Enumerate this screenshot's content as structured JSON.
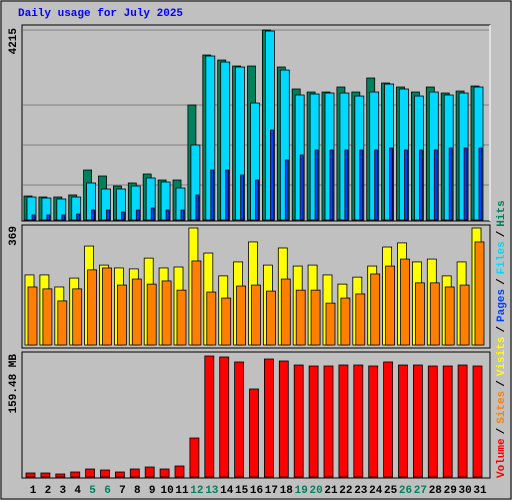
{
  "legend": {
    "separator": "/"
  },
  "chart_data": [
    {
      "type": "bar",
      "title": "Daily usage for July 2025",
      "title_color": "#0000ff",
      "ylim": [
        0,
        4215
      ],
      "yticks": [
        4215
      ],
      "grid": true,
      "series": [
        {
          "name": "Hits",
          "color": "#00805c",
          "values": [
            532,
            510,
            510,
            555,
            1109,
            976,
            754,
            821,
            1020,
            887,
            887,
            2551,
            3660,
            3549,
            3416,
            3416,
            4215,
            3394,
            2906,
            2839,
            2839,
            2950,
            2839,
            3150,
            3039,
            2950,
            2839,
            2950,
            2817,
            2861,
            2972
          ]
        },
        {
          "name": "Files",
          "color": "#00d8ff",
          "values": [
            510,
            488,
            466,
            510,
            821,
            688,
            688,
            754,
            932,
            843,
            710,
            1664,
            3638,
            3504,
            3394,
            2595,
            4192,
            3327,
            2773,
            2795,
            2817,
            2817,
            2750,
            2839,
            3016,
            2906,
            2750,
            2839,
            2773,
            2817,
            2950
          ]
        },
        {
          "name": "Pages",
          "color": "#0040ff",
          "values": [
            111,
            111,
            111,
            133,
            222,
            222,
            177,
            222,
            266,
            222,
            222,
            555,
            1109,
            1109,
            998,
            887,
            1996,
            1331,
            1442,
            1553,
            1553,
            1553,
            1553,
            1553,
            1597,
            1553,
            1553,
            1553,
            1597,
            1597,
            1597
          ]
        }
      ]
    },
    {
      "type": "bar",
      "ylim": [
        0,
        369
      ],
      "yticks": [
        369
      ],
      "series": [
        {
          "name": "Visits",
          "color": "#ffff00",
          "values": [
            221,
            221,
            183,
            211,
            312,
            252,
            243,
            240,
            274,
            243,
            246,
            369,
            290,
            218,
            262,
            325,
            252,
            306,
            249,
            252,
            221,
            192,
            214,
            249,
            309,
            322,
            262,
            271,
            218,
            262,
            369
          ]
        },
        {
          "name": "Sites",
          "color": "#ff8000",
          "values": [
            183,
            177,
            139,
            177,
            237,
            243,
            189,
            208,
            192,
            202,
            173,
            265,
            167,
            148,
            186,
            189,
            170,
            208,
            173,
            173,
            132,
            148,
            161,
            224,
            249,
            271,
            196,
            196,
            183,
            189,
            325
          ]
        }
      ]
    },
    {
      "type": "bar",
      "ylim": [
        0,
        159.48
      ],
      "yticks": [
        {
          "value": 159.48,
          "label": "159.48 MB"
        }
      ],
      "categories": [
        "1",
        "2",
        "3",
        "4",
        "5",
        "6",
        "7",
        "8",
        "9",
        "10",
        "11",
        "12",
        "13",
        "14",
        "15",
        "16",
        "17",
        "18",
        "19",
        "20",
        "21",
        "22",
        "23",
        "24",
        "25",
        "26",
        "27",
        "28",
        "29",
        "30",
        "31"
      ],
      "category_colors": [
        "#000000",
        "#000000",
        "#000000",
        "#000000",
        "#00805c",
        "#00805c",
        "#000000",
        "#000000",
        "#000000",
        "#000000",
        "#000000",
        "#00805c",
        "#00805c",
        "#000000",
        "#000000",
        "#000000",
        "#000000",
        "#000000",
        "#00805c",
        "#00805c",
        "#000000",
        "#000000",
        "#000000",
        "#000000",
        "#000000",
        "#00805c",
        "#00805c",
        "#000000",
        "#000000",
        "#000000",
        "#000000"
      ],
      "series": [
        {
          "name": "Volume",
          "color": "#ff0000",
          "values": [
            5.27,
            5.27,
            3.95,
            6.59,
            10.54,
            9.22,
            6.59,
            10.54,
            13.18,
            10.54,
            14.5,
            51.4,
            159.48,
            158.2,
            151.6,
            116.0,
            155.5,
            152.9,
            147.6,
            146.3,
            146.3,
            147.6,
            147.6,
            146.3,
            151.6,
            147.6,
            147.6,
            146.3,
            146.3,
            147.6,
            146.3
          ]
        }
      ]
    }
  ]
}
